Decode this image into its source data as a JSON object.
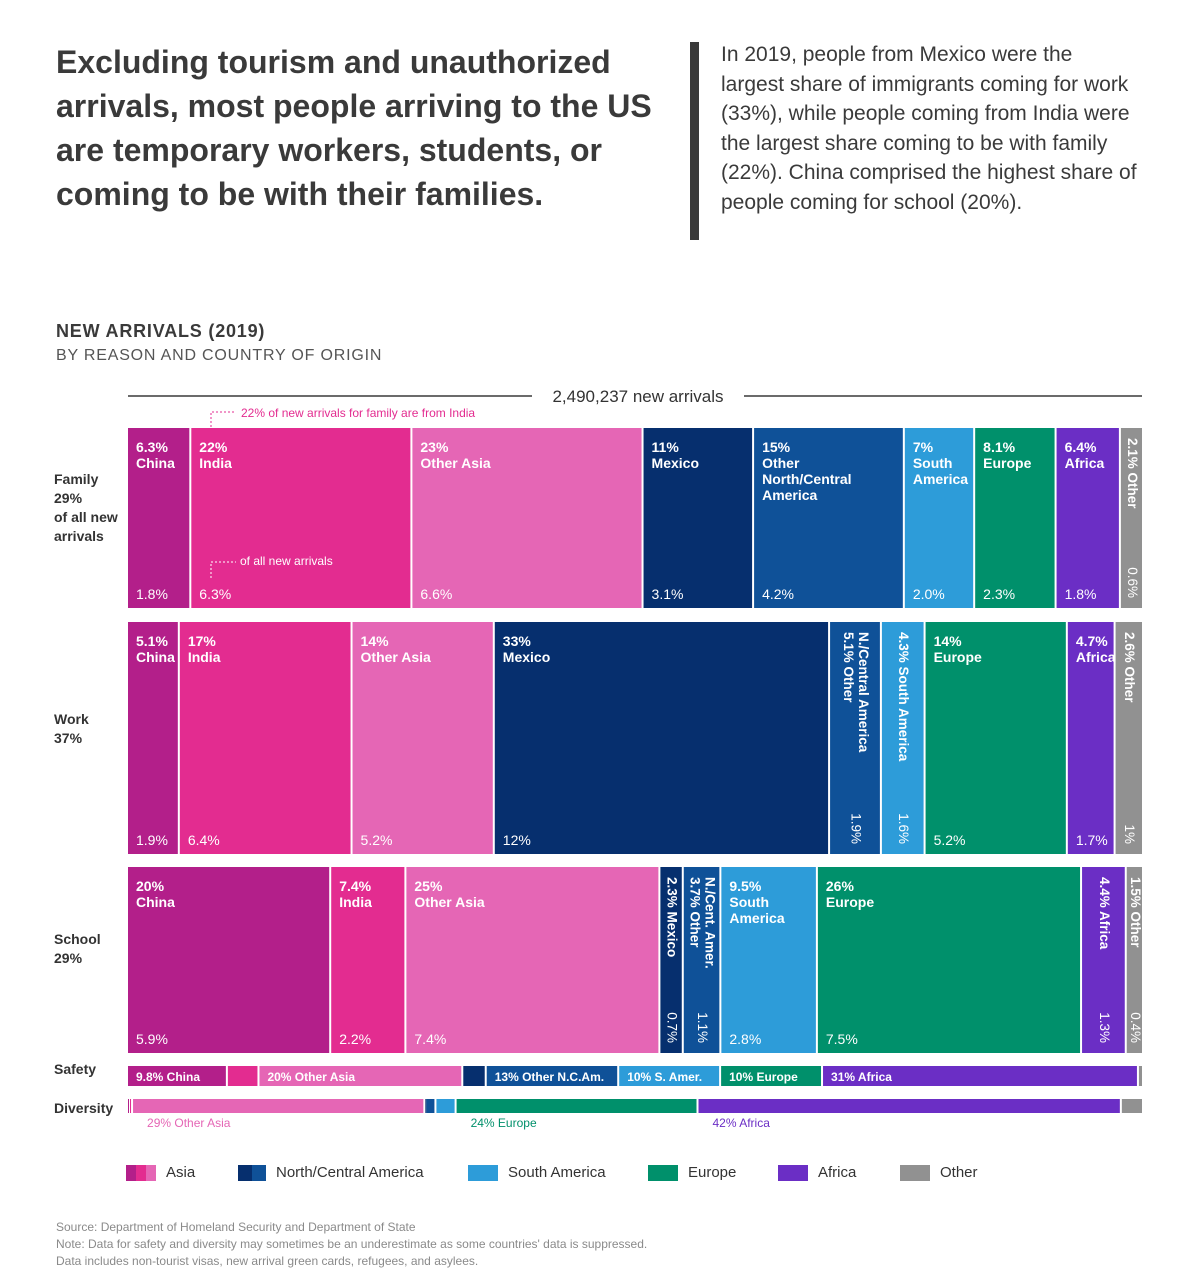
{
  "headline": "Excluding tourism and unauthorized arrivals, most people arriving to the US are temporary workers, students, or coming to be with their families.",
  "callout": "In 2019, people from Mexico were the largest share of immigrants coming for work (33%), while people coming from India were the largest share coming to be with family (22%). China comprised the highest share of people coming for school (20%).",
  "chart_title": "NEW ARRIVALS (2019)",
  "chart_subtitle": "BY REASON AND COUNTRY OF ORIGIN",
  "colors": {
    "china": "#b31f8a",
    "india": "#e32c90",
    "other_asia": "#e566b5",
    "mexico": "#062f6e",
    "other_nca": "#0f5198",
    "south_america": "#2d9cd9",
    "europe": "#00906b",
    "africa": "#6b2ec5",
    "other": "#919191"
  },
  "chart_data": {
    "type": "mosaic",
    "total_label": "2,490,237 new arrivals",
    "total": 2490237,
    "annotations": [
      "22% of new arrivals for family are from India",
      "of all new arrivals"
    ],
    "rows": [
      {
        "name": "Family",
        "share_label": "29%",
        "label_lines": [
          "Family",
          "29%",
          "of all new",
          "arrivals"
        ],
        "share": 29,
        "segments": [
          {
            "region": "china",
            "pct": 6.3,
            "label": [
              "6.3%",
              "China"
            ],
            "of_all": "1.8%"
          },
          {
            "region": "india",
            "pct": 22,
            "label": [
              "22%",
              "India"
            ],
            "of_all": "6.3%"
          },
          {
            "region": "other_asia",
            "pct": 23,
            "label": [
              "23%",
              "Other Asia"
            ],
            "of_all": "6.6%"
          },
          {
            "region": "mexico",
            "pct": 11,
            "label": [
              "11%",
              "Mexico"
            ],
            "of_all": "3.1%"
          },
          {
            "region": "other_nca",
            "pct": 15,
            "label": [
              "15%",
              "Other",
              "North/Central",
              "America"
            ],
            "of_all": "4.2%"
          },
          {
            "region": "south_america",
            "pct": 7,
            "label": [
              "7%",
              "South",
              "America"
            ],
            "of_all": "2.0%"
          },
          {
            "region": "europe",
            "pct": 8.1,
            "label": [
              "8.1%",
              "Europe"
            ],
            "of_all": "2.3%"
          },
          {
            "region": "africa",
            "pct": 6.4,
            "label": [
              "6.4%",
              "Africa"
            ],
            "of_all": "1.8%"
          },
          {
            "region": "other",
            "pct": 2.1,
            "label": [
              "2.1% Other"
            ],
            "of_all": "0.6%",
            "vertical": true
          }
        ]
      },
      {
        "name": "Work",
        "share_label": "37%",
        "label_lines": [
          "Work",
          "37%"
        ],
        "share": 37,
        "segments": [
          {
            "region": "china",
            "pct": 5.1,
            "label": [
              "5.1%",
              "China"
            ],
            "of_all": "1.9%"
          },
          {
            "region": "india",
            "pct": 17,
            "label": [
              "17%",
              "India"
            ],
            "of_all": "6.4%"
          },
          {
            "region": "other_asia",
            "pct": 14,
            "label": [
              "14%",
              "Other Asia"
            ],
            "of_all": "5.2%"
          },
          {
            "region": "mexico",
            "pct": 33,
            "label": [
              "33%",
              "Mexico"
            ],
            "of_all": "12%"
          },
          {
            "region": "other_nca",
            "pct": 5.1,
            "label": [
              "5.1% Other",
              "N./Central America"
            ],
            "of_all": "1.9%",
            "vertical": true
          },
          {
            "region": "south_america",
            "pct": 4.3,
            "label": [
              "4.3% South America"
            ],
            "of_all": "1.6%",
            "vertical": true
          },
          {
            "region": "europe",
            "pct": 14,
            "label": [
              "14%",
              "Europe"
            ],
            "of_all": "5.2%"
          },
          {
            "region": "africa",
            "pct": 4.7,
            "label": [
              "4.7%",
              "Africa"
            ],
            "of_all": "1.7%"
          },
          {
            "region": "other",
            "pct": 2.6,
            "label": [
              "2.6% Other"
            ],
            "of_all": "1%",
            "vertical": true
          }
        ]
      },
      {
        "name": "School",
        "share_label": "29%",
        "label_lines": [
          "School",
          "29%"
        ],
        "share": 29,
        "segments": [
          {
            "region": "china",
            "pct": 20,
            "label": [
              "20%",
              "China"
            ],
            "of_all": "5.9%"
          },
          {
            "region": "india",
            "pct": 7.4,
            "label": [
              "7.4%",
              "India"
            ],
            "of_all": "2.2%"
          },
          {
            "region": "other_asia",
            "pct": 25,
            "label": [
              "25%",
              "Other Asia"
            ],
            "of_all": "7.4%"
          },
          {
            "region": "mexico",
            "pct": 2.3,
            "label": [
              "2.3% Mexico"
            ],
            "of_all": "0.7%",
            "vertical": true
          },
          {
            "region": "other_nca",
            "pct": 3.7,
            "label": [
              "3.7% Other",
              "N./Cent. Amer."
            ],
            "of_all": "1.1%",
            "vertical": true
          },
          {
            "region": "south_america",
            "pct": 9.5,
            "label": [
              "9.5%",
              "South",
              "America"
            ],
            "of_all": "2.8%"
          },
          {
            "region": "europe",
            "pct": 26,
            "label": [
              "26%",
              "Europe"
            ],
            "of_all": "7.5%"
          },
          {
            "region": "africa",
            "pct": 4.4,
            "label": [
              "4.4% Africa"
            ],
            "of_all": "1.3%",
            "vertical": true
          },
          {
            "region": "other",
            "pct": 1.5,
            "label": [
              "1.5% Other"
            ],
            "of_all": "0.4%",
            "vertical": true
          }
        ]
      },
      {
        "name": "Safety",
        "thin": true,
        "segments": [
          {
            "region": "china",
            "pct": 9.8,
            "label": "9.8% China"
          },
          {
            "region": "india",
            "pct": 3.1
          },
          {
            "region": "other_asia",
            "pct": 20,
            "label": "20% Other Asia"
          },
          {
            "region": "mexico",
            "pct": 2.3
          },
          {
            "region": "other_nca",
            "pct": 13,
            "label": "13% Other N.C.Am."
          },
          {
            "region": "south_america",
            "pct": 10,
            "label": "10% S. Amer."
          },
          {
            "region": "europe",
            "pct": 10,
            "label": "10% Europe"
          },
          {
            "region": "africa",
            "pct": 31,
            "label": "31% Africa"
          },
          {
            "region": "other",
            "pct": 0.3
          }
        ]
      },
      {
        "name": "Diversity",
        "thin": true,
        "below_labels": true,
        "segments": [
          {
            "region": "china",
            "pct": 0.2
          },
          {
            "region": "india",
            "pct": 0.3
          },
          {
            "region": "other_asia",
            "pct": 29,
            "label": "29% Other Asia"
          },
          {
            "region": "mexico",
            "pct": 0.1
          },
          {
            "region": "other_nca",
            "pct": 1.0
          },
          {
            "region": "south_america",
            "pct": 2.0
          },
          {
            "region": "europe",
            "pct": 24,
            "label": "24% Europe"
          },
          {
            "region": "africa",
            "pct": 42,
            "label": "42% Africa"
          },
          {
            "region": "other",
            "pct": 2.0
          }
        ]
      }
    ]
  },
  "legend": [
    {
      "label": "Asia",
      "colors": [
        "#b31f8a",
        "#e32c90",
        "#e566b5"
      ]
    },
    {
      "label": "North/Central America",
      "colors": [
        "#062f6e",
        "#0f5198"
      ]
    },
    {
      "label": "South America",
      "colors": [
        "#2d9cd9"
      ]
    },
    {
      "label": "Europe",
      "colors": [
        "#00906b"
      ]
    },
    {
      "label": "Africa",
      "colors": [
        "#6b2ec5"
      ]
    },
    {
      "label": "Other",
      "colors": [
        "#919191"
      ]
    }
  ],
  "footer": {
    "source": "Source: Department of Homeland Security and Department of State",
    "note": "Note: Data for safety and diversity may sometimes be an underestimate as some countries' data is suppressed.",
    "note2": "Data includes non-tourist visas, new arrival green cards, refugees, and asylees."
  }
}
